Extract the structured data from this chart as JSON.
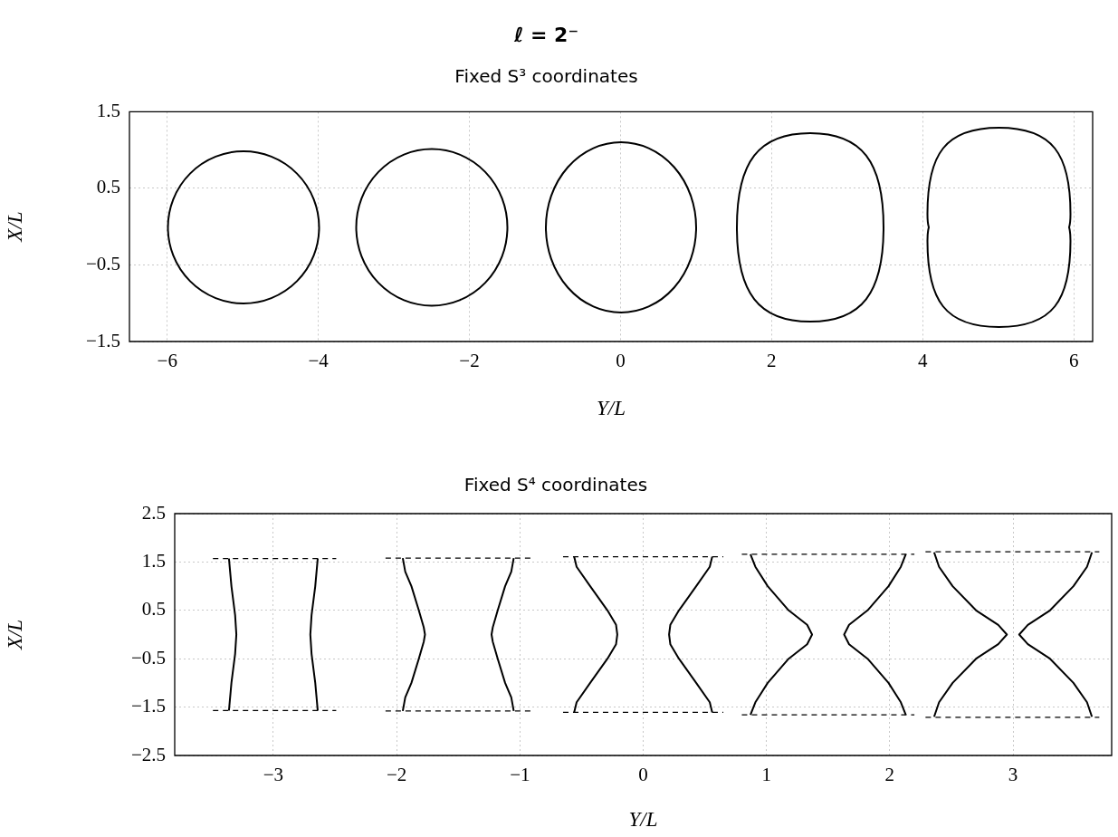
{
  "chart_data": [
    {
      "type": "line",
      "title": "ℓ = 2⁻",
      "subtitle": "Fixed S³ coordinates",
      "xlabel": "Y/L",
      "ylabel": "X/L",
      "xlim": [
        -6.5,
        6.25
      ],
      "ylim": [
        -1.5,
        1.5
      ],
      "xticks": [
        -6,
        -4,
        -2,
        0,
        2,
        4,
        6
      ],
      "yticks": [
        -1.5,
        -0.5,
        0.5,
        1.5
      ],
      "grid": true
    },
    {
      "type": "line",
      "title": "Fixed S⁴ coordinates",
      "xlabel": "Y/L",
      "ylabel": "X/L",
      "xlim": [
        -3.8,
        3.8
      ],
      "ylim": [
        -2.5,
        2.5
      ],
      "xticks": [
        -3,
        -2,
        -1,
        0,
        1,
        2,
        3
      ],
      "yticks": [
        -2.5,
        -1.5,
        -0.5,
        0.5,
        1.5,
        2.5
      ],
      "grid": true,
      "marker": "none",
      "line_style": "solid",
      "series": [
        {
          "color": "#000000",
          "x": [
            -3.36,
            -3.34,
            -3.31,
            -3.3,
            -3.31,
            -3.34,
            -3.36
          ],
          "values": [
            1.57,
            1,
            0.4,
            0,
            -0.4,
            -1,
            -1.57
          ]
        },
        {
          "color": "#000000",
          "x": [
            -2.64,
            -2.66,
            -2.69,
            -2.7,
            -2.69,
            -2.66,
            -2.64
          ],
          "values": [
            1.57,
            1,
            0.4,
            0,
            -0.4,
            -1,
            -1.57
          ]
        },
        {
          "color": "#000000",
          "x": [
            -1.95,
            -1.93,
            -1.88,
            -1.82,
            -1.78,
            -1.77,
            -1.78,
            -1.82,
            -1.88,
            -1.93,
            -1.95
          ],
          "values": [
            1.58,
            1.3,
            1,
            0.5,
            0.15,
            0,
            -0.15,
            -0.5,
            -1,
            -1.3,
            -1.58
          ]
        },
        {
          "color": "#000000",
          "x": [
            -1.05,
            -1.07,
            -1.12,
            -1.18,
            -1.22,
            -1.23,
            -1.22,
            -1.18,
            -1.12,
            -1.07,
            -1.05
          ],
          "values": [
            1.58,
            1.3,
            1,
            0.5,
            0.15,
            0,
            -0.15,
            -0.5,
            -1,
            -1.3,
            -1.58
          ]
        },
        {
          "color": "#000000",
          "x": [
            -0.56,
            -0.54,
            -0.43,
            -0.29,
            -0.22,
            -0.21,
            -0.22,
            -0.29,
            -0.43,
            -0.54,
            -0.56
          ],
          "values": [
            1.61,
            1.4,
            1,
            0.5,
            0.2,
            0,
            -0.2,
            -0.5,
            -1,
            -1.4,
            -1.61
          ]
        },
        {
          "color": "#000000",
          "x": [
            0.56,
            0.54,
            0.43,
            0.29,
            0.22,
            0.21,
            0.22,
            0.29,
            0.43,
            0.54,
            0.56
          ],
          "values": [
            1.61,
            1.4,
            1,
            0.5,
            0.2,
            0,
            -0.2,
            -0.5,
            -1,
            -1.4,
            -1.61
          ]
        },
        {
          "color": "#000000",
          "x": [
            0.87,
            0.91,
            1.01,
            1.18,
            1.33,
            1.37,
            1.33,
            1.18,
            1.01,
            0.91,
            0.87
          ],
          "values": [
            1.66,
            1.4,
            1,
            0.5,
            0.2,
            0,
            -0.2,
            -0.5,
            -1,
            -1.4,
            -1.66
          ]
        },
        {
          "color": "#000000",
          "x": [
            2.13,
            2.09,
            1.99,
            1.82,
            1.67,
            1.63,
            1.67,
            1.82,
            1.99,
            2.09,
            2.13
          ],
          "values": [
            1.66,
            1.4,
            1,
            0.5,
            0.2,
            0,
            -0.2,
            -0.5,
            -1,
            -1.4,
            -1.66
          ]
        },
        {
          "color": "#000000",
          "x": [
            2.36,
            2.4,
            2.51,
            2.7,
            2.88,
            2.95,
            2.88,
            2.7,
            2.51,
            2.4,
            2.36
          ],
          "values": [
            1.7,
            1.4,
            1,
            0.5,
            0.2,
            0,
            -0.2,
            -0.5,
            -1,
            -1.4,
            -1.7
          ]
        },
        {
          "color": "#000000",
          "x": [
            3.64,
            3.6,
            3.49,
            3.3,
            3.12,
            3.05,
            3.12,
            3.3,
            3.49,
            3.6,
            3.64
          ],
          "values": [
            1.7,
            1.4,
            1,
            0.5,
            0.2,
            0,
            -0.2,
            -0.5,
            -1,
            -1.4,
            -1.7
          ]
        },
        {
          "color": "#000000",
          "line_style": "dashed",
          "x": [
            -3.49,
            -2.49
          ],
          "values": [
            1.57,
            1.57
          ]
        },
        {
          "color": "#000000",
          "line_style": "dashed",
          "x": [
            -3.49,
            -2.49
          ],
          "values": [
            -1.57,
            -1.57
          ]
        },
        {
          "color": "#000000",
          "line_style": "dashed",
          "x": [
            -2.09,
            -0.9
          ],
          "values": [
            1.58,
            1.58
          ]
        },
        {
          "color": "#000000",
          "line_style": "dashed",
          "x": [
            -2.09,
            -0.9
          ],
          "values": [
            -1.58,
            -1.58
          ]
        },
        {
          "color": "#000000",
          "line_style": "dashed",
          "x": [
            -0.65,
            0.65
          ],
          "values": [
            1.61,
            1.61
          ]
        },
        {
          "color": "#000000",
          "line_style": "dashed",
          "x": [
            -0.65,
            0.65
          ],
          "values": [
            -1.61,
            -1.61
          ]
        },
        {
          "color": "#000000",
          "line_style": "dashed",
          "x": [
            0.8,
            2.2
          ],
          "values": [
            1.66,
            1.66
          ]
        },
        {
          "color": "#000000",
          "line_style": "dashed",
          "x": [
            0.8,
            2.2
          ],
          "values": [
            -1.66,
            -1.66
          ]
        },
        {
          "color": "#000000",
          "line_style": "dashed",
          "x": [
            2.29,
            3.7
          ],
          "values": [
            1.71,
            1.71
          ]
        },
        {
          "color": "#000000",
          "line_style": "dashed",
          "x": [
            2.29,
            3.7
          ],
          "values": [
            -1.71,
            -1.71
          ]
        }
      ]
    }
  ]
}
